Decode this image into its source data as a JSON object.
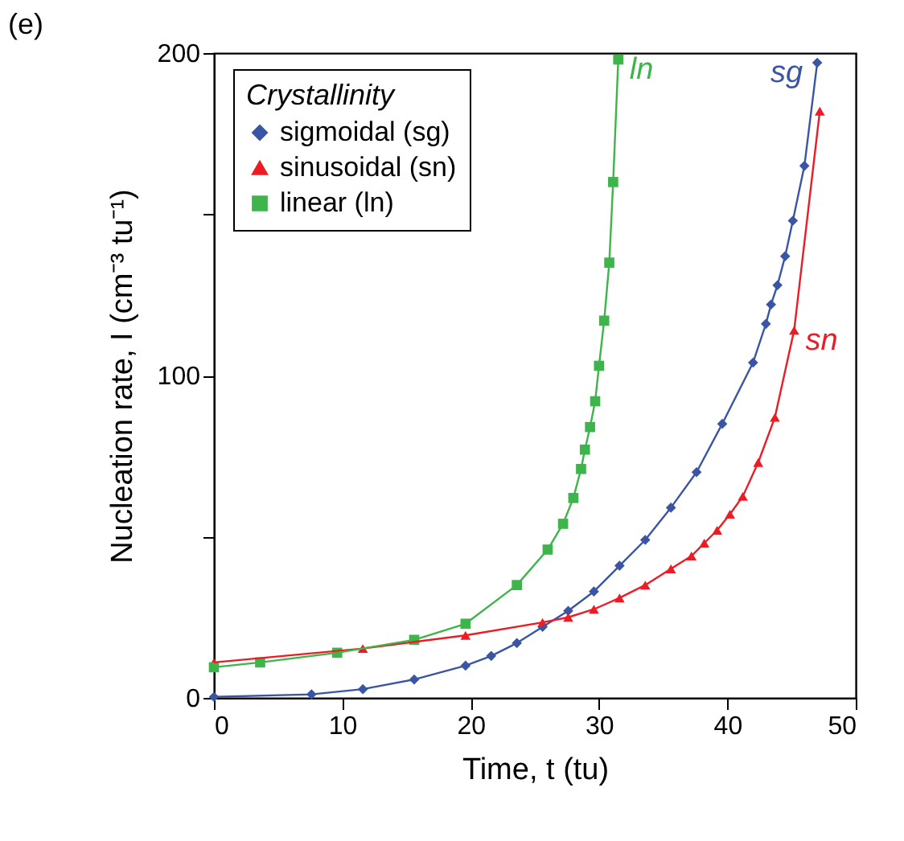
{
  "chart_data": {
    "type": "line",
    "title": "(e)",
    "xlabel": "Time, t (tu)",
    "ylabel": "Nucleation rate, I (cm⁻³ tu⁻¹)",
    "legend_title": "Crystallinity",
    "legend": "top left",
    "xlim": [
      0,
      50
    ],
    "xticks": [
      0,
      10,
      20,
      30,
      40,
      50
    ],
    "ylim": [
      0,
      200
    ],
    "yticks": [
      0,
      {
        "value": 50,
        "label": null
      },
      100,
      {
        "value": 150,
        "label": null
      },
      200
    ],
    "grid": false,
    "series": [
      {
        "name": "sigmoidal (sg)",
        "color": "#3a55a4",
        "marker": "diamond",
        "x": [
          0,
          7.6,
          11.6,
          15.6,
          19.6,
          21.6,
          23.6,
          25.6,
          27.6,
          29.6,
          31.6,
          33.6,
          35.6,
          37.6,
          39.6,
          42,
          43,
          43.4,
          43.9,
          44.5,
          45.1,
          46,
          47
        ],
        "values": [
          0.3,
          1.1,
          2.7,
          5.7,
          10,
          13,
          17,
          22,
          27,
          33,
          41,
          49,
          59,
          70,
          85,
          104,
          116,
          122,
          128,
          137,
          148,
          165,
          197
        ]
      },
      {
        "name": "sinusoidal (sn)",
        "color": "#ed1c24",
        "marker": "triangle",
        "x": [
          0,
          11.6,
          19.6,
          25.6,
          27.6,
          29.6,
          31.6,
          33.6,
          35.6,
          37.2,
          38.2,
          39.2,
          40.2,
          41.2,
          42.4,
          43.7,
          45.2,
          47.2
        ],
        "values": [
          11,
          15.3,
          19.4,
          23.4,
          25,
          27.5,
          31,
          35,
          40,
          44,
          48,
          52,
          57,
          62.5,
          73,
          87,
          114,
          182
        ]
      },
      {
        "name": "linear (ln)",
        "color": "#3db54a",
        "marker": "square",
        "x": [
          0,
          3.6,
          9.6,
          15.6,
          19.6,
          23.6,
          26,
          27.2,
          28,
          28.6,
          28.9,
          29.3,
          29.7,
          30,
          30.4,
          30.8,
          31.1,
          31.5
        ],
        "values": [
          9.5,
          11,
          14,
          18,
          23,
          35,
          46,
          54,
          62,
          71,
          77,
          84,
          92,
          103,
          117,
          135,
          160,
          198
        ]
      }
    ],
    "annotations": [
      {
        "text": "sg",
        "x": 47,
        "y": 197
      },
      {
        "text": "sn",
        "x": 45.2,
        "y": 114
      },
      {
        "text": "ln",
        "x": 31.5,
        "y": 198
      }
    ]
  }
}
